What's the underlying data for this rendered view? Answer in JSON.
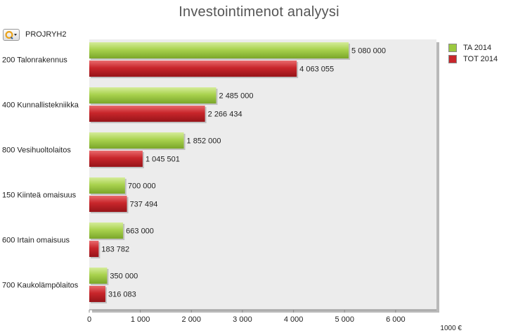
{
  "title": "Investointimenot analyysi",
  "dimension": {
    "label": "PROJRYH2",
    "icon": "cycle-dimension-icon"
  },
  "legend": [
    {
      "name": "TA 2014",
      "color": "#9bc93f"
    },
    {
      "name": "TOT 2014",
      "color": "#c8262b"
    }
  ],
  "chart_data": {
    "type": "bar",
    "orientation": "horizontal",
    "title": "Investointimenot analyysi",
    "categories": [
      "200 Talonrakennus",
      "400 Kunnallistekniikka",
      "800 Vesihuoltolaitos",
      "150 Kiinteä omaisuus",
      "600 Irtain omaisuus",
      "700 Kaukolämpölaitos"
    ],
    "series": [
      {
        "name": "TA 2014",
        "values": [
          5080000,
          2485000,
          1852000,
          700000,
          663000,
          350000
        ],
        "labels": [
          "5 080 000",
          "2 485 000",
          "1 852 000",
          "700 000",
          "663 000",
          "350 000"
        ],
        "color": "#9bc93f"
      },
      {
        "name": "TOT 2014",
        "values": [
          4063055,
          2266434,
          1045501,
          737494,
          183782,
          316083
        ],
        "labels": [
          "4 063 055",
          "2 266 434",
          "1 045 501",
          "737 494",
          "183 782",
          "316 083"
        ],
        "color": "#c8262b"
      }
    ],
    "x_ticks": [
      0,
      1000,
      2000,
      3000,
      4000,
      5000,
      6000
    ],
    "x_tick_labels": [
      "0",
      "1 000",
      "2 000",
      "3 000",
      "4 000",
      "5 000",
      "6 000"
    ],
    "xlim": [
      0,
      6800
    ],
    "x_unit_label": "1000 €",
    "grid": false,
    "legend_position": "top-right"
  }
}
